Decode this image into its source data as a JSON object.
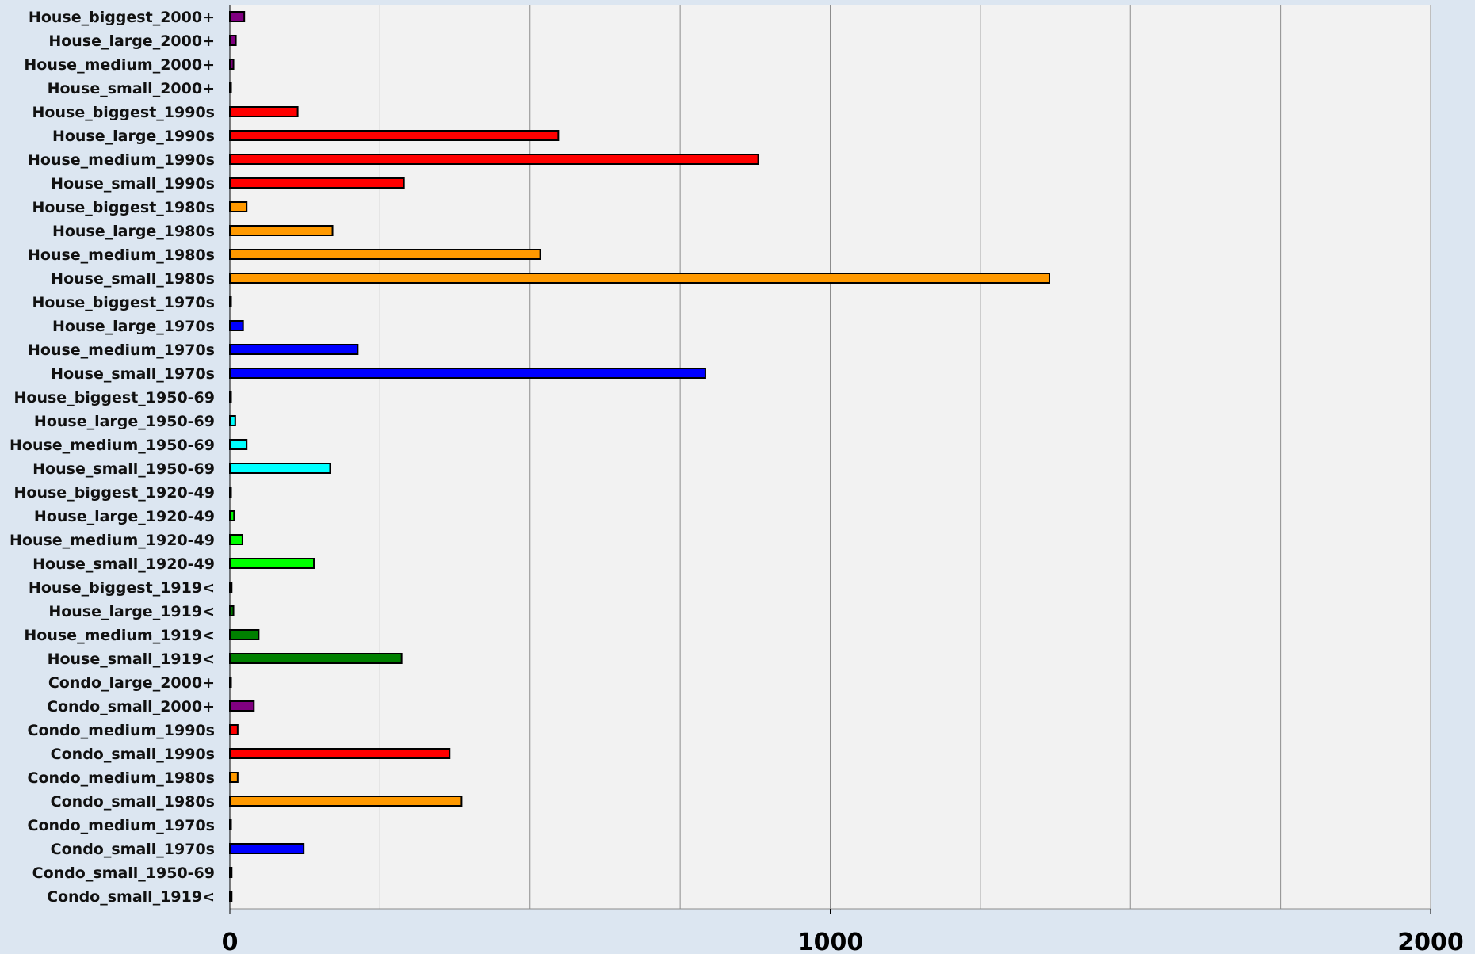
{
  "chart_data": {
    "type": "bar",
    "orientation": "horizontal",
    "title": "",
    "xlabel": "",
    "ylabel": "",
    "xlim": [
      0,
      2000
    ],
    "x_ticks": [
      0,
      1000,
      2000
    ],
    "x_tick_labels": [
      "0",
      "1000",
      "2000"
    ],
    "gridlines": [
      0,
      250,
      500,
      750,
      1000,
      1250,
      1500,
      1750,
      2000
    ],
    "grid": true,
    "legend": "none",
    "colors": {
      "page_background": "#dce6f1",
      "plot_background": "#f2f2f2",
      "2000+": "#800080",
      "1990s": "#ff0000",
      "1980s": "#ff9900",
      "1970s": "#0000ff",
      "1950-69": "#00ffff",
      "1920-49": "#00ff00",
      "1919<": "#008000"
    },
    "bars": [
      {
        "label": "House_biggest_2000+",
        "value": 24,
        "group": "2000+"
      },
      {
        "label": "House_large_2000+",
        "value": 10,
        "group": "2000+"
      },
      {
        "label": "House_medium_2000+",
        "value": 6,
        "group": "2000+"
      },
      {
        "label": "House_small_2000+",
        "value": 2,
        "group": "2000+"
      },
      {
        "label": "House_biggest_1990s",
        "value": 113,
        "group": "1990s"
      },
      {
        "label": "House_large_1990s",
        "value": 547,
        "group": "1990s"
      },
      {
        "label": "House_medium_1990s",
        "value": 880,
        "group": "1990s"
      },
      {
        "label": "House_small_1990s",
        "value": 290,
        "group": "1990s"
      },
      {
        "label": "House_biggest_1980s",
        "value": 28,
        "group": "1980s"
      },
      {
        "label": "House_large_1980s",
        "value": 171,
        "group": "1980s"
      },
      {
        "label": "House_medium_1980s",
        "value": 517,
        "group": "1980s"
      },
      {
        "label": "House_small_1980s",
        "value": 1365,
        "group": "1980s"
      },
      {
        "label": "House_biggest_1970s",
        "value": 1,
        "group": "1970s"
      },
      {
        "label": "House_large_1970s",
        "value": 22,
        "group": "1970s"
      },
      {
        "label": "House_medium_1970s",
        "value": 213,
        "group": "1970s"
      },
      {
        "label": "House_small_1970s",
        "value": 792,
        "group": "1970s"
      },
      {
        "label": "House_biggest_1950-69",
        "value": 1,
        "group": "1950-69"
      },
      {
        "label": "House_large_1950-69",
        "value": 9,
        "group": "1950-69"
      },
      {
        "label": "House_medium_1950-69",
        "value": 28,
        "group": "1950-69"
      },
      {
        "label": "House_small_1950-69",
        "value": 167,
        "group": "1950-69"
      },
      {
        "label": "House_biggest_1920-49",
        "value": 1,
        "group": "1920-49"
      },
      {
        "label": "House_large_1920-49",
        "value": 7,
        "group": "1920-49"
      },
      {
        "label": "House_medium_1920-49",
        "value": 21,
        "group": "1920-49"
      },
      {
        "label": "House_small_1920-49",
        "value": 140,
        "group": "1920-49"
      },
      {
        "label": "House_biggest_1919<",
        "value": 3,
        "group": "1919<"
      },
      {
        "label": "House_large_1919<",
        "value": 6,
        "group": "1919<"
      },
      {
        "label": "House_medium_1919<",
        "value": 48,
        "group": "1919<"
      },
      {
        "label": "House_small_1919<",
        "value": 286,
        "group": "1919<"
      },
      {
        "label": "Condo_large_2000+",
        "value": 1,
        "group": "2000+"
      },
      {
        "label": "Condo_small_2000+",
        "value": 40,
        "group": "2000+"
      },
      {
        "label": "Condo_medium_1990s",
        "value": 13,
        "group": "1990s"
      },
      {
        "label": "Condo_small_1990s",
        "value": 366,
        "group": "1990s"
      },
      {
        "label": "Condo_medium_1980s",
        "value": 13,
        "group": "1980s"
      },
      {
        "label": "Condo_small_1980s",
        "value": 386,
        "group": "1980s"
      },
      {
        "label": "Condo_medium_1970s",
        "value": 1,
        "group": "1970s"
      },
      {
        "label": "Condo_small_1970s",
        "value": 123,
        "group": "1970s"
      },
      {
        "label": "Condo_small_1950-69",
        "value": 3,
        "group": "1950-69"
      },
      {
        "label": "Condo_small_1919<",
        "value": 3,
        "group": "1919<"
      }
    ]
  }
}
